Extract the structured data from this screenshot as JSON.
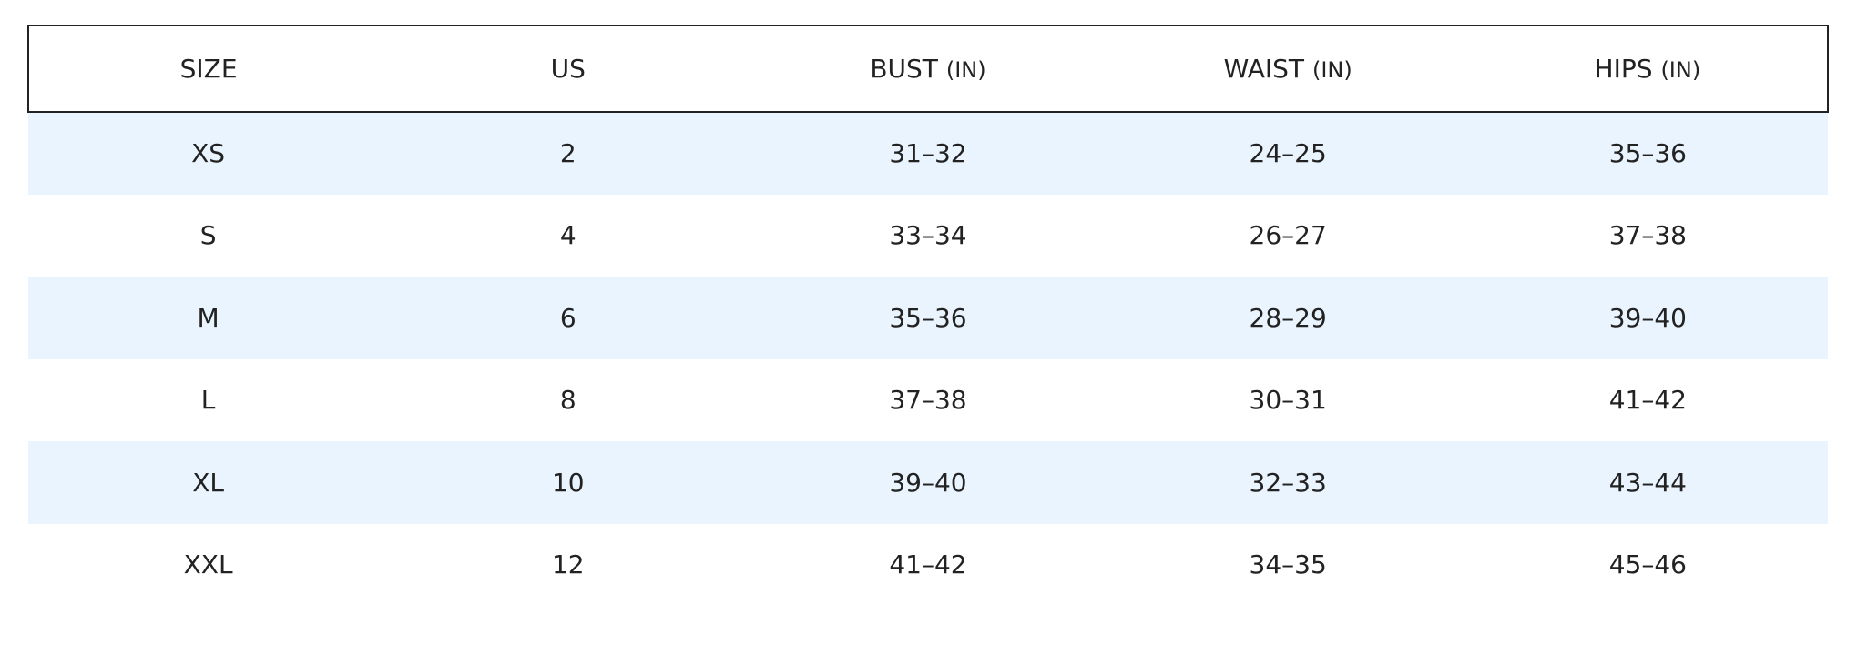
{
  "table": {
    "headers": [
      {
        "label": "SIZE"
      },
      {
        "label": "US"
      },
      {
        "label": "BUST",
        "unit": "(IN)"
      },
      {
        "label": "WAIST",
        "unit": "(IN)"
      },
      {
        "label": "HIPS",
        "unit": "(IN)"
      }
    ],
    "rows": [
      [
        "XS",
        "2",
        "31–32",
        "24–25",
        "35–36"
      ],
      [
        "S",
        "4",
        "33–34",
        "26–27",
        "37–38"
      ],
      [
        "M",
        "6",
        "35–36",
        "28–29",
        "39–40"
      ],
      [
        "L",
        "8",
        "37–38",
        "30–31",
        "41–42"
      ],
      [
        "XL",
        "10",
        "39–40",
        "32–33",
        "43–44"
      ],
      [
        "XXL",
        "12",
        "41–42",
        "34–35",
        "45–46"
      ]
    ]
  }
}
